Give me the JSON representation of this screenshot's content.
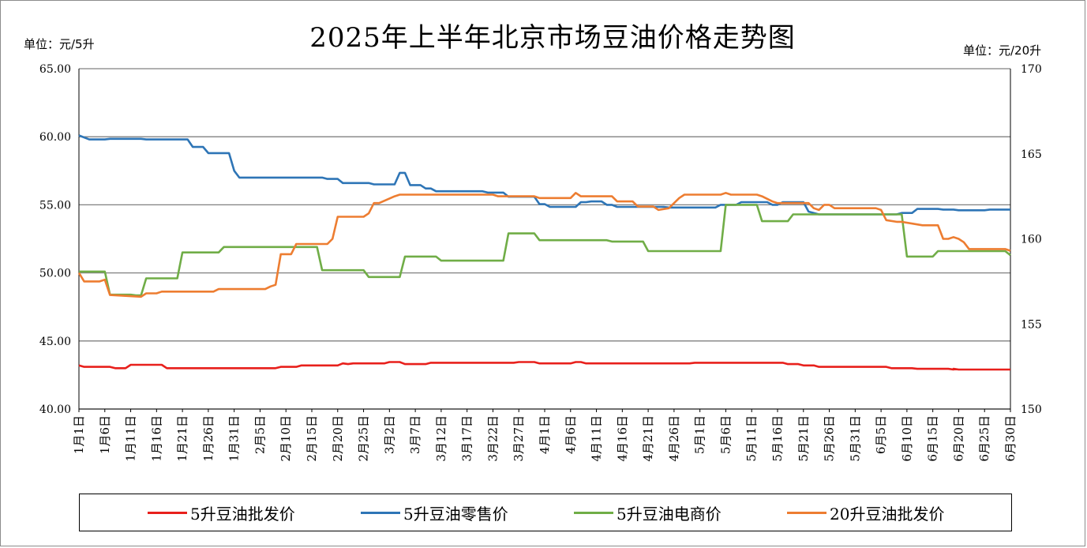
{
  "chart_data": {
    "type": "line",
    "title": "2025年上半年北京市场豆油价格走势图",
    "left_unit": "单位：元/5升",
    "right_unit": "单位：元/20升",
    "y_left": {
      "min": 40,
      "max": 65,
      "ticks": [
        "40.00",
        "45.00",
        "50.00",
        "55.00",
        "60.00",
        "65.00"
      ]
    },
    "y_right": {
      "min": 150,
      "max": 170,
      "ticks": [
        "150",
        "155",
        "160",
        "165",
        "170"
      ]
    },
    "x_start": "1月1日",
    "x_end": "6月30日",
    "x_tick_labels": [
      "1月1日",
      "1月6日",
      "1月11日",
      "1月16日",
      "1月21日",
      "1月26日",
      "1月31日",
      "2月5日",
      "2月10日",
      "2月15日",
      "2月20日",
      "2月25日",
      "3月2日",
      "3月7日",
      "3月12日",
      "3月17日",
      "3月22日",
      "3月27日",
      "4月1日",
      "4月6日",
      "4月11日",
      "4月16日",
      "4月21日",
      "4月26日",
      "5月1日",
      "5月6日",
      "5月11日",
      "5月16日",
      "5月21日",
      "5月26日",
      "5月31日",
      "6月5日",
      "6月10日",
      "6月15日",
      "6月20日",
      "6月25日",
      "6月30日"
    ],
    "grid": true,
    "legend_position": "bottom",
    "series": [
      {
        "name": "5升豆油批发价",
        "color": "#e8201c",
        "axis": "left",
        "x": [
          "1月1日",
          "1月2日",
          "1月7日",
          "1月8日",
          "1月10日",
          "1月11日",
          "1月17日",
          "1月18日",
          "2月8日",
          "2月9日",
          "2月12日",
          "2月13日",
          "2月20日",
          "2月21日",
          "2月22日",
          "2月23日",
          "3月1日",
          "3月2日",
          "3月4日",
          "3月5日",
          "3月9日",
          "3月10日",
          "3月26日",
          "3月27日",
          "3月30日",
          "3月31日",
          "4月6日",
          "4月7日",
          "4月8日",
          "4月9日",
          "4月29日",
          "4月30日",
          "5月17日",
          "5月18日",
          "5月20日",
          "5月21日",
          "5月23日",
          "5月24日",
          "6月6日",
          "6月7日",
          "6月11日",
          "6月12日",
          "6月18日",
          "6月19日",
          "6月19日",
          "6月20日",
          "6月30日"
        ],
        "values": [
          43.2,
          43.1,
          43.1,
          43.0,
          43.0,
          43.25,
          43.25,
          43.0,
          43.0,
          43.1,
          43.1,
          43.2,
          43.2,
          43.35,
          43.3,
          43.35,
          43.35,
          43.45,
          43.45,
          43.3,
          43.3,
          43.4,
          43.4,
          43.45,
          43.45,
          43.35,
          43.35,
          43.45,
          43.45,
          43.35,
          43.35,
          43.4,
          43.4,
          43.3,
          43.3,
          43.2,
          43.2,
          43.1,
          43.1,
          43.0,
          43.0,
          42.95,
          42.95,
          42.9,
          42.95,
          42.9,
          42.9
        ]
      },
      {
        "name": "5升豆油零售价",
        "color": "#2e75b6",
        "axis": "left",
        "x": [
          "1月1日",
          "1月3日",
          "1月6日",
          "1月7日",
          "1月13日",
          "1月14日",
          "1月22日",
          "1月23日",
          "1月25日",
          "1月26日",
          "1月29日",
          "1月30日",
          "1月31日",
          "2月1日",
          "2月17日",
          "2月18日",
          "2月20日",
          "2月21日",
          "2月26日",
          "2月27日",
          "3月3日",
          "3月4日",
          "3月5日",
          "3月6日",
          "3月8日",
          "3月9日",
          "3月10日",
          "3月11日",
          "3月20日",
          "3月21日",
          "3月24日",
          "3月25日",
          "3月30日",
          "3月31日",
          "4月1日",
          "4月2日",
          "4月7日",
          "4月8日",
          "4月9日",
          "4月10日",
          "4月12日",
          "4月13日",
          "4月14日",
          "4月15日",
          "4月24日",
          "4月25日",
          "4月28日",
          "4月29日",
          "5月4日",
          "5月5日",
          "5月8日",
          "5月9日",
          "5月14日",
          "5月15日",
          "5月16日",
          "5月17日",
          "5月21日",
          "5月22日",
          "5月24日",
          "5月25日",
          "6月8日",
          "6月9日",
          "6月11日",
          "6月12日",
          "6月16日",
          "6月17日",
          "6月19日",
          "6月20日",
          "6月25日",
          "6月26日",
          "6月30日"
        ],
        "values": [
          60.1,
          59.8,
          59.8,
          59.85,
          59.85,
          59.8,
          59.8,
          59.25,
          59.25,
          58.8,
          58.8,
          58.8,
          57.5,
          57.0,
          57.0,
          56.9,
          56.9,
          56.6,
          56.6,
          56.5,
          56.5,
          57.35,
          57.35,
          56.45,
          56.45,
          56.2,
          56.2,
          56.0,
          56.0,
          55.9,
          55.9,
          55.6,
          55.6,
          55.05,
          55.05,
          54.85,
          54.85,
          55.2,
          55.2,
          55.25,
          55.25,
          55.0,
          55.0,
          54.85,
          54.85,
          54.8,
          54.8,
          54.8,
          54.8,
          55.0,
          55.0,
          55.2,
          55.2,
          55.0,
          55.0,
          55.2,
          55.2,
          54.5,
          54.3,
          54.3,
          54.3,
          54.4,
          54.4,
          54.7,
          54.7,
          54.65,
          54.65,
          54.6,
          54.6,
          54.65,
          54.65
        ]
      },
      {
        "name": "5升豆油电商价",
        "color": "#70ad47",
        "axis": "left",
        "x": [
          "1月1日",
          "1月2日",
          "1月6日",
          "1月7日",
          "1月11日",
          "1月12日",
          "1月13日",
          "1月14日",
          "1月20日",
          "1月21日",
          "1月28日",
          "1月29日",
          "2月16日",
          "2月17日",
          "2月25日",
          "2月26日",
          "3月4日",
          "3月5日",
          "3月11日",
          "3月12日",
          "3月24日",
          "3月25日",
          "3月30日",
          "3月31日",
          "4月13日",
          "4月14日",
          "4月20日",
          "4月21日",
          "5月5日",
          "5月6日",
          "5月12日",
          "5月13日",
          "5月18日",
          "5月19日",
          "6月9日",
          "6月10日",
          "6月15日",
          "6月16日",
          "6月29日",
          "6月30日"
        ],
        "values": [
          50.1,
          50.1,
          50.1,
          48.4,
          48.4,
          48.35,
          48.35,
          49.6,
          49.6,
          51.5,
          51.5,
          51.9,
          51.9,
          50.2,
          50.2,
          49.7,
          49.7,
          51.2,
          51.2,
          50.9,
          50.9,
          52.9,
          52.9,
          52.4,
          52.4,
          52.3,
          52.3,
          51.6,
          51.6,
          55.0,
          55.0,
          53.8,
          53.8,
          54.3,
          54.3,
          51.2,
          51.2,
          51.6,
          51.6,
          51.3
        ]
      },
      {
        "name": "20升豆油批发价",
        "color": "#ed7d31",
        "axis": "right",
        "x": [
          "1月1日",
          "1月2日",
          "1月5日",
          "1月6日",
          "1月7日",
          "1月13日",
          "1月14日",
          "1月16日",
          "1月17日",
          "1月27日",
          "1月28日",
          "2月6日",
          "2月7日",
          "2月8日",
          "2月9日",
          "2月11日",
          "2月12日",
          "2月18日",
          "2月19日",
          "2月20日",
          "2月25日",
          "2月26日",
          "2月27日",
          "2月28日",
          "3月3日",
          "3月4日",
          "3月22日",
          "3月23日",
          "3月30日",
          "3月31日",
          "4月6日",
          "4月7日",
          "4月8日",
          "4月14日",
          "4月15日",
          "4月18日",
          "4月19日",
          "4月22日",
          "4月23日",
          "4月25日",
          "4月26日",
          "4月27日",
          "4月28日",
          "5月5日",
          "5月6日",
          "5月7日",
          "5月12日",
          "5月13日",
          "5月15日",
          "5月16日",
          "5月22日",
          "5月23日",
          "5月24日",
          "5月25日",
          "5月26日",
          "5月27日",
          "6月4日",
          "6月5日",
          "6月6日",
          "6月8日",
          "6月9日",
          "6月13日",
          "6月14日",
          "6月16日",
          "6月17日",
          "6月18日",
          "6月19日",
          "6月20日",
          "6月21日",
          "6月22日",
          "6月29日",
          "6月30日"
        ],
        "values": [
          158.0,
          157.5,
          157.5,
          157.6,
          156.7,
          156.6,
          156.8,
          156.8,
          156.9,
          156.9,
          157.05,
          157.05,
          157.2,
          157.3,
          159.1,
          159.1,
          159.7,
          159.7,
          160.0,
          161.3,
          161.3,
          161.5,
          162.1,
          162.1,
          162.5,
          162.6,
          162.6,
          162.5,
          162.5,
          162.4,
          162.4,
          162.7,
          162.5,
          162.5,
          162.2,
          162.2,
          161.9,
          161.9,
          161.7,
          161.8,
          162.1,
          162.4,
          162.6,
          162.6,
          162.7,
          162.6,
          162.6,
          162.5,
          162.2,
          162.1,
          162.1,
          161.8,
          161.7,
          162.0,
          162.0,
          161.8,
          161.8,
          161.7,
          161.1,
          161.0,
          161.0,
          160.8,
          160.8,
          160.8,
          160.0,
          160.0,
          160.1,
          160.0,
          159.8,
          159.4,
          159.4,
          159.3
        ]
      }
    ]
  },
  "legend": [
    {
      "label": "5升豆油批发价",
      "color": "#e8201c"
    },
    {
      "label": "5升豆油零售价",
      "color": "#2e75b6"
    },
    {
      "label": "5升豆油电商价",
      "color": "#70ad47"
    },
    {
      "label": "20升豆油批发价",
      "color": "#ed7d31"
    }
  ]
}
